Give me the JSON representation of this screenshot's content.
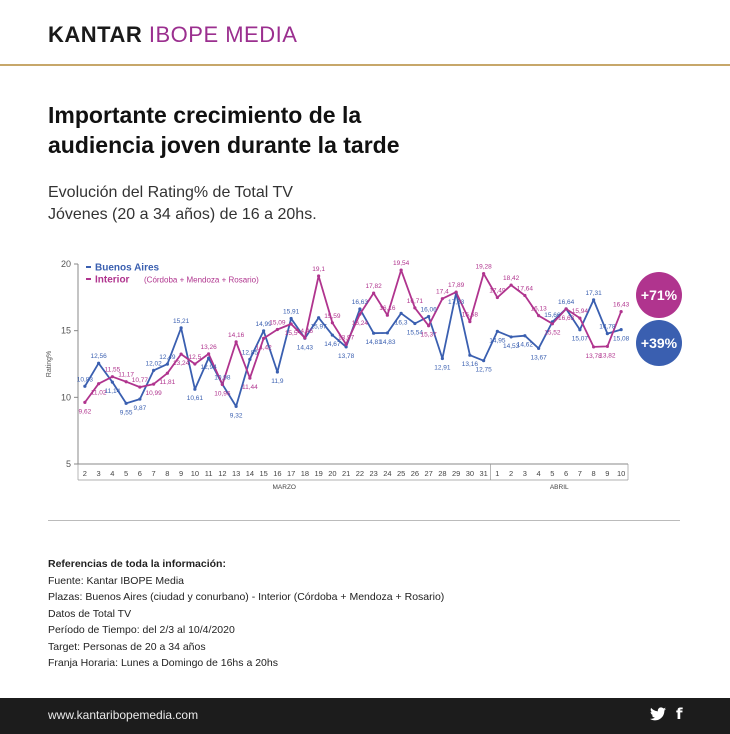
{
  "logo": {
    "part1": "KANTAR",
    "part2": "IBOPE MEDIA"
  },
  "headline": "Importante crecimiento de la audiencia joven durante la tarde",
  "subtitle": {
    "line1": "Evolución del Rating% de Total TV",
    "line2": "Jóvenes (20 a 34 años) de 16 a 20hs."
  },
  "badges": {
    "interior": "+71%",
    "buenos_aires": "+39%"
  },
  "colors": {
    "buenos_aires": "#3a5fb0",
    "interior": "#b0348e",
    "gold": "#c7a76a"
  },
  "chart_data": {
    "type": "line",
    "ylabel": "Rating%",
    "ylim": [
      5,
      20
    ],
    "yticks": [
      5,
      10,
      15,
      20
    ],
    "grid": false,
    "legend": "top-left",
    "x": [
      "2",
      "3",
      "4",
      "5",
      "6",
      "7",
      "8",
      "9",
      "10",
      "11",
      "12",
      "13",
      "14",
      "15",
      "16",
      "17",
      "18",
      "19",
      "20",
      "21",
      "22",
      "23",
      "24",
      "25",
      "26",
      "27",
      "28",
      "29",
      "30",
      "31",
      "1",
      "2",
      "3",
      "4",
      "5",
      "6",
      "7",
      "8",
      "9",
      "10"
    ],
    "month_labels": [
      "MARZO",
      "ABRIL"
    ],
    "series": [
      {
        "name": "Buenos Aires",
        "color": "#3a5fb0",
        "values": [
          10.83,
          12.56,
          11.14,
          9.55,
          9.87,
          12.02,
          12.49,
          15.21,
          10.61,
          12.94,
          10.98,
          9.32,
          12.85,
          14.99,
          11.9,
          15.91,
          14.43,
          15.97,
          14.67,
          13.78,
          16.63,
          14.81,
          14.83,
          16.3,
          15.54,
          16.06,
          12.91,
          17.83,
          13.16,
          12.75,
          14.95,
          14.53,
          14.62,
          13.67,
          15.66,
          16.64,
          15.07,
          17.31,
          14.78,
          15.08
        ],
        "labels": [
          "10,83",
          "12,56",
          "11,14",
          "9,55",
          "9,87",
          "12,02",
          "12,49",
          "15,21",
          "10,61",
          "12,94",
          "10,98",
          "9,32",
          "12,85",
          "14,99",
          "11,9",
          "15,91",
          "14,43",
          "15,97",
          "14,67",
          "13,78",
          "16,63",
          "14,81",
          "14,83",
          "16,3",
          "15,54",
          "16,06",
          "12,91",
          "17,83",
          "13,16",
          "12,75",
          "14,95",
          "14,53",
          "14,62",
          "13,67",
          "15,66",
          "16,64",
          "15,07",
          "17,31",
          "14,78",
          "15,08"
        ]
      },
      {
        "name": "Interior",
        "name_note": "(Córdoba + Mendoza + Rosario)",
        "color": "#b0348e",
        "values": [
          9.62,
          11.02,
          11.55,
          11.17,
          10.77,
          10.99,
          11.81,
          13.24,
          12.5,
          13.26,
          10.96,
          14.16,
          11.44,
          14.42,
          15.09,
          15.5,
          14.46,
          19.1,
          15.59,
          13.97,
          16.24,
          17.82,
          16.16,
          19.54,
          16.71,
          15.37,
          17.4,
          17.89,
          15.68,
          19.28,
          17.49,
          18.42,
          17.64,
          16.13,
          15.52,
          16.63,
          15.94,
          13.78,
          13.82,
          16.43
        ],
        "labels": [
          "9,62",
          "11,02",
          "11,55",
          "11,17",
          "10,77",
          "10,99",
          "11,81",
          "13,24",
          "12,5",
          "13,26",
          "10,96",
          "14,16",
          "11,44",
          "14,42",
          "15,09",
          "15,5",
          "14,46",
          "19,1",
          "15,59",
          "13,97",
          "16,24",
          "17,82",
          "16,16",
          "19,54",
          "16,71",
          "15,37",
          "17,4",
          "17,89",
          "15,68",
          "19,28",
          "17,49",
          "18,42",
          "17,64",
          "16,13",
          "15,52",
          "16,63",
          "15,94",
          "13,78",
          "13,82",
          "16,43"
        ]
      }
    ]
  },
  "references": {
    "title": "Referencias de toda la información:",
    "lines": [
      "Fuente: Kantar IBOPE Media",
      "Plazas: Buenos Aires (ciudad y conurbano)  -  Interior (Córdoba + Mendoza + Rosario)",
      "Datos de Total TV",
      "Período de Tiempo: del 2/3 al 10/4/2020",
      "Target: Personas de 20 a 34 años",
      "Franja Horaria: Lunes a Domingo de 16hs a 20hs"
    ]
  },
  "footer": {
    "url": "www.kantaribopemedia.com",
    "icons": [
      "twitter-icon",
      "facebook-icon"
    ],
    "facebook_glyph": "f"
  }
}
